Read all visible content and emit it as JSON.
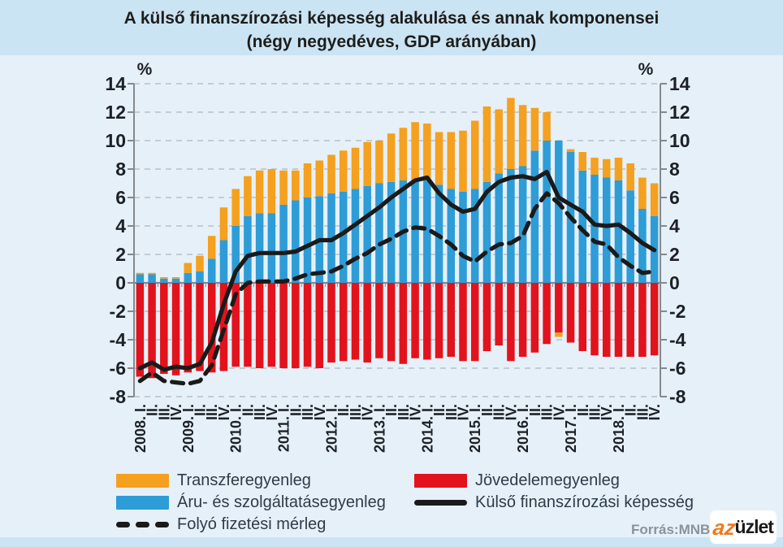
{
  "page": {
    "source_label": "Forrás:MNB",
    "logo": {
      "prefix": "az",
      "text": "üzlet"
    },
    "colors": {
      "page_bg": "#CBE4F4",
      "panel_bg": "#E6F0F8",
      "grid": "#B7BFC7",
      "axis": "#85898E",
      "axis_text": "#1D2127",
      "legend_text": "#2E3B49",
      "source_text": "#8A929B"
    }
  },
  "chart_data": {
    "type": "bar",
    "title": "A külső finanszírozási képesség alakulása és annak komponensei",
    "subtitle": "(négy negyedéves, GDP arányában)",
    "unit": "%",
    "ylim": [
      -8,
      14
    ],
    "ytick_step": 2,
    "grid": true,
    "stacked": true,
    "legend_position": "bottom",
    "categories": [
      "2008. I.",
      "II.",
      "III.",
      "IV.",
      "2009. I.",
      "II.",
      "III.",
      "IV.",
      "2010. I.",
      "II.",
      "III.",
      "IV.",
      "2011. I.",
      "II.",
      "III.",
      "IV.",
      "2012. I.",
      "II.",
      "III.",
      "IV.",
      "2013. I.",
      "II.",
      "III.",
      "IV.",
      "2014. I.",
      "II.",
      "III.",
      "IV.",
      "2015. I.",
      "II.",
      "III.",
      "IV.",
      "2016. I.",
      "II.",
      "III.",
      "IV.",
      "2017. I.",
      "II.",
      "III.",
      "IV.",
      "2018. I.",
      "II.",
      "III.",
      "IV."
    ],
    "series": [
      {
        "name": "Transzferegyenleg",
        "type": "bar",
        "color": "#F5A01E",
        "values": [
          0.1,
          0.1,
          0.1,
          0.1,
          0.7,
          1.1,
          1.6,
          2.3,
          2.6,
          2.8,
          3.0,
          3.1,
          2.4,
          2.1,
          2.4,
          2.5,
          2.7,
          2.9,
          2.9,
          3.1,
          3.0,
          3.4,
          3.7,
          4.2,
          4.0,
          3.7,
          4.0,
          4.3,
          4.8,
          5.3,
          4.5,
          5.0,
          4.3,
          3.0,
          2.0,
          -0.3,
          0.2,
          1.3,
          1.2,
          1.3,
          1.6,
          1.9,
          2.2,
          2.3
        ]
      },
      {
        "name": "Áru- és szolgáltatásegyenleg",
        "type": "bar",
        "color": "#2D9CD7",
        "values": [
          0.6,
          0.6,
          0.3,
          0.3,
          0.7,
          0.8,
          1.7,
          3.0,
          4.0,
          4.7,
          4.9,
          4.9,
          5.5,
          5.8,
          6.0,
          6.1,
          6.3,
          6.4,
          6.6,
          6.8,
          7.0,
          7.1,
          7.2,
          7.1,
          7.2,
          6.9,
          6.6,
          6.4,
          6.6,
          7.1,
          7.7,
          8.0,
          8.2,
          9.3,
          10.0,
          10.0,
          9.2,
          7.9,
          7.6,
          7.4,
          7.2,
          6.5,
          5.2,
          4.7
        ]
      },
      {
        "name": "Jövedelemegyenleg",
        "type": "bar",
        "color": "#E2131C",
        "values": [
          -6.6,
          -6.7,
          -6.4,
          -6.5,
          -6.3,
          -6.2,
          -6.3,
          -6.2,
          -5.9,
          -5.9,
          -6.0,
          -5.9,
          -6.0,
          -6.0,
          -5.9,
          -6.0,
          -5.6,
          -5.5,
          -5.4,
          -5.6,
          -5.3,
          -5.5,
          -5.7,
          -5.3,
          -5.4,
          -5.3,
          -5.2,
          -5.5,
          -5.5,
          -4.8,
          -4.4,
          -5.5,
          -5.2,
          -4.9,
          -4.3,
          -3.5,
          -4.2,
          -4.8,
          -5.1,
          -5.2,
          -5.2,
          -5.2,
          -5.2,
          -5.1
        ]
      },
      {
        "name": "Külső finanszírozási képesség",
        "type": "line",
        "line_style": "solid",
        "color": "#1A1A1A",
        "values": [
          -6.0,
          -5.6,
          -6.1,
          -5.9,
          -6.0,
          -5.7,
          -4.2,
          -1.5,
          0.8,
          1.9,
          2.1,
          2.1,
          2.1,
          2.2,
          2.6,
          3.0,
          3.0,
          3.5,
          4.1,
          4.7,
          5.3,
          6.0,
          6.6,
          7.2,
          7.4,
          6.3,
          5.5,
          5.0,
          5.2,
          6.4,
          7.1,
          7.4,
          7.5,
          7.3,
          7.8,
          6.0,
          5.5,
          5.0,
          4.1,
          4.0,
          4.1,
          3.5,
          2.8,
          2.3
        ]
      },
      {
        "name": "Folyó fizetési mérleg",
        "type": "line",
        "line_style": "dashed",
        "color": "#1A1A1A",
        "values": [
          -6.9,
          -6.3,
          -6.9,
          -7.0,
          -7.1,
          -6.9,
          -5.8,
          -3.3,
          -0.8,
          0.0,
          0.1,
          0.1,
          0.1,
          0.3,
          0.6,
          0.7,
          0.8,
          1.2,
          1.7,
          2.1,
          2.7,
          3.1,
          3.6,
          3.9,
          3.8,
          3.3,
          2.7,
          1.9,
          1.5,
          2.2,
          2.7,
          2.8,
          3.3,
          5.2,
          6.3,
          5.6,
          4.6,
          3.7,
          2.9,
          2.7,
          1.8,
          1.2,
          0.7,
          0.8
        ]
      }
    ]
  }
}
